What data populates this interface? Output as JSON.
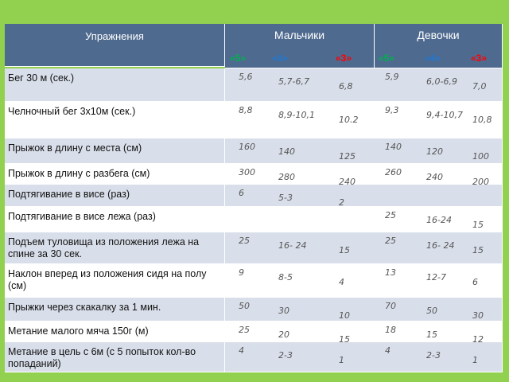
{
  "header": {
    "exercises": "Упражнения",
    "boys": "Мальчики",
    "girls": "Девочки",
    "grades": [
      "«5»",
      "«4»",
      "«3»"
    ]
  },
  "rows": [
    {
      "label": "Бег 30 м  (сек.)",
      "boys": [
        "5,6",
        "5,7-6,7",
        "6,8"
      ],
      "girls": [
        "5,9",
        "6,0-6,9",
        "7,0"
      ]
    },
    {
      "label": "Челночный бег 3х10м (сек.)",
      "boys": [
        "8,8",
        "8,9-10,1",
        "10.2"
      ],
      "girls": [
        "9,3",
        "9,4-10,7",
        "10,8"
      ]
    },
    {
      "label": "Прыжок в длину с места (см)",
      "boys": [
        "160",
        "140",
        "125"
      ],
      "girls": [
        "140",
        "120",
        "100"
      ]
    },
    {
      "label": "Прыжок  в длину с разбега (см)",
      "boys": [
        "300",
        "280",
        "240"
      ],
      "girls": [
        "260",
        "240",
        "200"
      ]
    },
    {
      "label": "Подтягивание в висе (раз)",
      "boys": [
        "6",
        "5-3",
        "2"
      ],
      "girls": [
        "",
        "",
        ""
      ]
    },
    {
      "label": "Подтягивание в висе лежа (раз)",
      "boys": [
        "",
        "",
        ""
      ],
      "girls": [
        "25",
        "16-24",
        "15"
      ]
    },
    {
      "label": "Подъем туловища из положения лежа на спине  за 30 сек.",
      "boys": [
        "25",
        "16- 24",
        "15"
      ],
      "girls": [
        "25",
        "16- 24",
        "15"
      ]
    },
    {
      "label": "Наклон вперед из положения сидя на полу (см)",
      "boys": [
        "9",
        "8-5",
        "4"
      ],
      "girls": [
        "13",
        "12-7",
        "6"
      ]
    },
    {
      "label": "Прыжки через скакалку за 1 мин.",
      "boys": [
        "50",
        "30",
        "10"
      ],
      "girls": [
        "70",
        "50",
        "30"
      ]
    },
    {
      "label": "Метание малого мяча 150г (м)",
      "boys": [
        "25",
        "20",
        "15"
      ],
      "girls": [
        "18",
        "15",
        "12"
      ]
    },
    {
      "label": "Метание в цель с 6м (с 5 попыток кол-во попаданий)",
      "boys": [
        "4",
        "2-3",
        "1"
      ],
      "girls": [
        "4",
        "2-3",
        "1"
      ]
    }
  ],
  "colors": {
    "background": "#92d050",
    "header": "#4f6a8f",
    "row_alt": "#d9dfea",
    "grade5": "#00b050",
    "grade4": "#1f78d1",
    "grade3": "#ff0000"
  }
}
